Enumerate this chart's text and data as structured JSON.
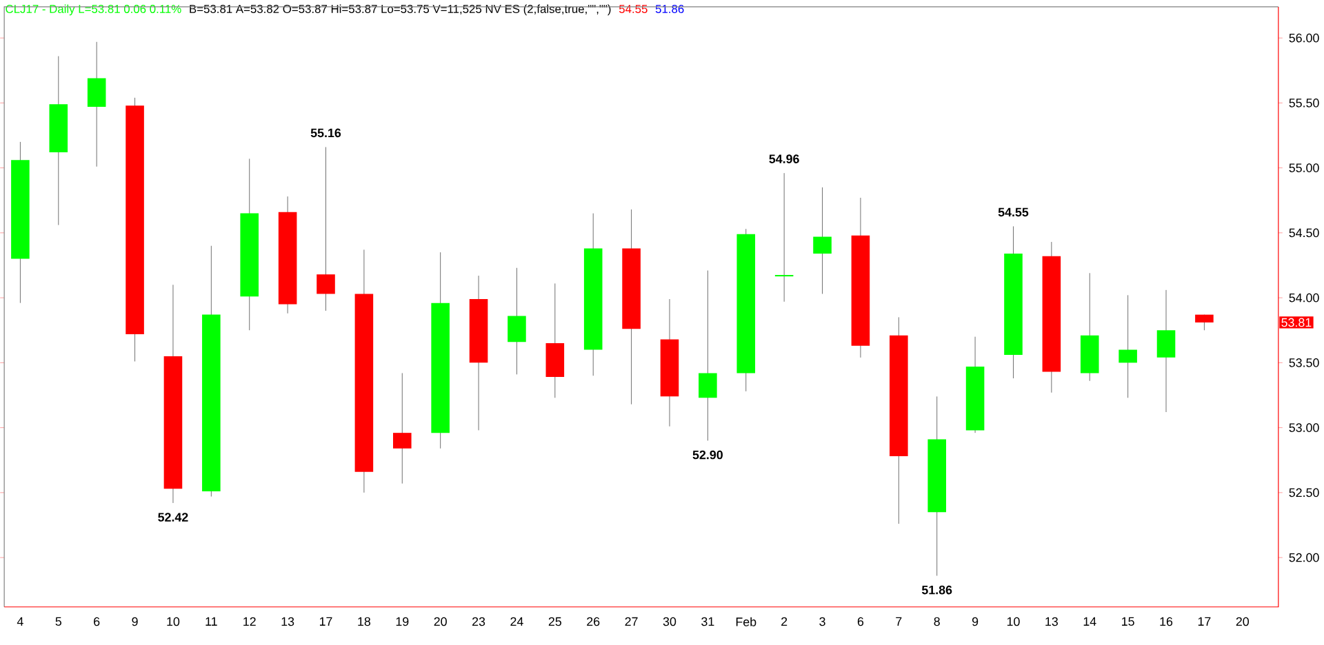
{
  "chart_data": {
    "type": "candlestick",
    "title": "CLJ17 - Daily  L=53.81  0.06  0.11%",
    "subtitle": "B=53.81  A=53.82  O=53.87  Hi=53.87  Lo=53.75  V=11,525  NV ES (2,false,true,\"\",\"\")",
    "categories": [
      "4",
      "5",
      "6",
      "9",
      "10",
      "11",
      "12",
      "13",
      "17",
      "18",
      "19",
      "20",
      "23",
      "24",
      "25",
      "26",
      "27",
      "30",
      "31",
      "Feb",
      "2",
      "3",
      "6",
      "7",
      "8",
      "9",
      "10",
      "13",
      "14",
      "15",
      "16",
      "17",
      "20"
    ],
    "ohlc": [
      [
        54.3,
        55.2,
        53.96,
        55.06
      ],
      [
        55.12,
        55.86,
        54.56,
        55.49
      ],
      [
        55.47,
        55.97,
        55.01,
        55.69
      ],
      [
        55.48,
        55.54,
        53.51,
        53.72
      ],
      [
        53.55,
        54.1,
        52.42,
        52.53
      ],
      [
        52.51,
        54.4,
        52.47,
        53.87
      ],
      [
        54.01,
        55.07,
        53.75,
        54.65
      ],
      [
        54.66,
        54.78,
        53.88,
        53.95
      ],
      [
        54.18,
        55.16,
        53.9,
        54.03
      ],
      [
        54.03,
        54.37,
        52.5,
        52.66
      ],
      [
        52.96,
        53.42,
        52.57,
        52.84
      ],
      [
        52.96,
        54.35,
        52.84,
        53.96
      ],
      [
        53.99,
        54.17,
        52.98,
        53.5
      ],
      [
        53.66,
        54.23,
        53.41,
        53.86
      ],
      [
        53.65,
        54.11,
        53.23,
        53.39
      ],
      [
        53.6,
        54.65,
        53.4,
        54.38
      ],
      [
        54.38,
        54.68,
        53.18,
        53.76
      ],
      [
        53.68,
        53.99,
        53.01,
        53.24
      ],
      [
        53.23,
        54.21,
        52.9,
        53.42
      ],
      [
        53.42,
        54.53,
        53.28,
        54.49
      ],
      [
        54.17,
        54.96,
        53.97,
        54.17
      ],
      [
        54.34,
        54.85,
        54.03,
        54.47
      ],
      [
        54.48,
        54.77,
        53.54,
        53.63
      ],
      [
        53.71,
        53.85,
        52.26,
        52.78
      ],
      [
        52.35,
        53.24,
        51.86,
        52.91
      ],
      [
        52.98,
        53.7,
        52.96,
        53.47
      ],
      [
        53.56,
        54.55,
        53.38,
        54.34
      ],
      [
        54.32,
        54.43,
        53.27,
        53.43
      ],
      [
        53.42,
        54.19,
        53.36,
        53.71
      ],
      [
        53.5,
        54.02,
        53.23,
        53.6
      ],
      [
        53.54,
        54.06,
        53.12,
        53.75
      ],
      [
        53.87,
        53.87,
        53.75,
        53.81
      ],
      null
    ],
    "colors": [
      "#00ff00",
      "#00ff00",
      "#00ff00",
      "#ff0000",
      "#ff0000",
      "#00ff00",
      "#00ff00",
      "#ff0000",
      "#ff0000",
      "#ff0000",
      "#ff0000",
      "#00ff00",
      "#ff0000",
      "#00ff00",
      "#ff0000",
      "#00ff00",
      "#ff0000",
      "#ff0000",
      "#00ff00",
      "#00ff00",
      "#00ff00",
      "#00ff00",
      "#ff0000",
      "#ff0000",
      "#00ff00",
      "#00ff00",
      "#00ff00",
      "#ff0000",
      "#00ff00",
      "#00ff00",
      "#00ff00",
      "#ff0000",
      null
    ],
    "ylim": [
      51.62,
      56.24
    ],
    "yticks": [
      {
        "value": 52,
        "label": "52.00"
      },
      {
        "value": 52.5,
        "label": "52.50"
      },
      {
        "value": 53,
        "label": "53.00"
      },
      {
        "value": 53.5,
        "label": "53.50"
      },
      {
        "value": 54,
        "label": "54.00"
      },
      {
        "value": 54.5,
        "label": "54.50"
      },
      {
        "value": 55,
        "label": "55.00"
      },
      {
        "value": 55.5,
        "label": "55.50"
      },
      {
        "value": 56,
        "label": "56.00"
      }
    ],
    "annotations": [
      "54.55",
      "51.86",
      {
        "text": "55.16",
        "y": 55.16
      },
      {
        "text": "52.42",
        "y": 52.42
      },
      {
        "text": "52.90",
        "y": 52.9
      },
      {
        "text": "54.96",
        "y": 54.96
      },
      {
        "text": "54.55",
        "y": 54.55
      },
      {
        "text": "51.86",
        "y": 51.86
      },
      "53.81"
    ],
    "grid": false
  }
}
